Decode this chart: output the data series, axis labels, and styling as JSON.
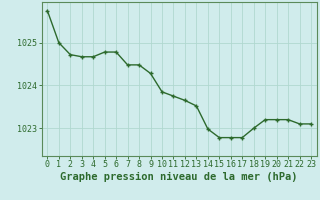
{
  "x": [
    0,
    1,
    2,
    3,
    4,
    5,
    6,
    7,
    8,
    9,
    10,
    11,
    12,
    13,
    14,
    15,
    16,
    17,
    18,
    19,
    20,
    21,
    22,
    23
  ],
  "y": [
    1025.75,
    1025.0,
    1024.72,
    1024.67,
    1024.67,
    1024.78,
    1024.78,
    1024.48,
    1024.48,
    1024.28,
    1023.85,
    1023.75,
    1023.65,
    1023.52,
    1022.98,
    1022.78,
    1022.78,
    1022.78,
    1023.0,
    1023.2,
    1023.2,
    1023.2,
    1023.1,
    1023.1
  ],
  "line_color": "#2d6a2d",
  "marker": "+",
  "bg_color": "#d0ecec",
  "grid_color": "#b0d8d0",
  "axis_color": "#5a8a5a",
  "tick_color": "#2d6a2d",
  "label_color": "#2d6a2d",
  "xlabel": "Graphe pression niveau de la mer (hPa)",
  "yticks": [
    1023,
    1024,
    1025
  ],
  "xticks": [
    0,
    1,
    2,
    3,
    4,
    5,
    6,
    7,
    8,
    9,
    10,
    11,
    12,
    13,
    14,
    15,
    16,
    17,
    18,
    19,
    20,
    21,
    22,
    23
  ],
  "ylim": [
    1022.35,
    1025.95
  ],
  "xlim": [
    -0.5,
    23.5
  ],
  "xlabel_fontsize": 7.5,
  "tick_fontsize": 6,
  "linewidth": 1.0,
  "markersize": 3.5
}
